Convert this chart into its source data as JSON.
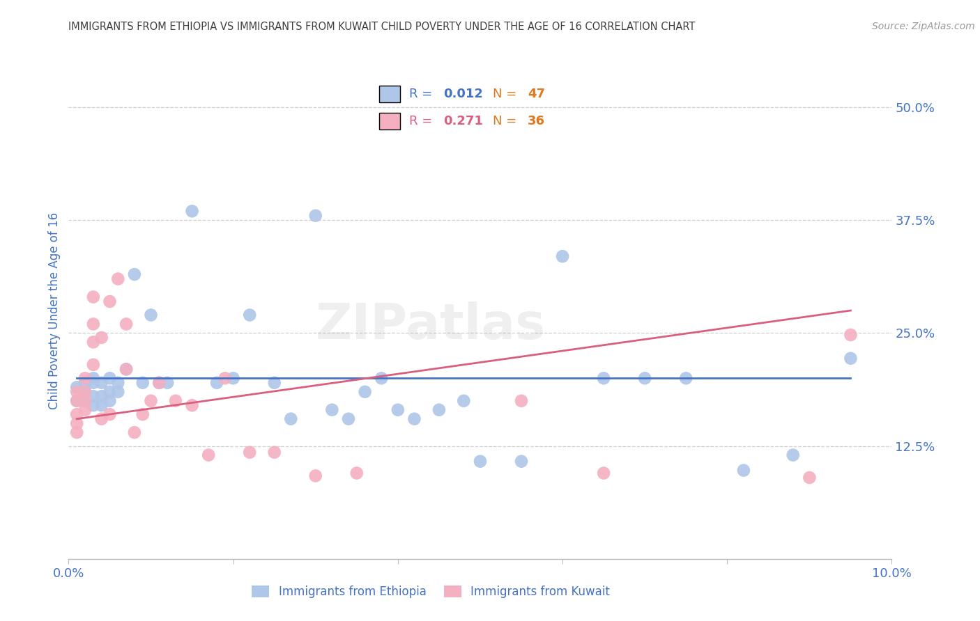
{
  "title": "IMMIGRANTS FROM ETHIOPIA VS IMMIGRANTS FROM KUWAIT CHILD POVERTY UNDER THE AGE OF 16 CORRELATION CHART",
  "source": "Source: ZipAtlas.com",
  "ylabel": "Child Poverty Under the Age of 16",
  "xlim": [
    0.0,
    0.1
  ],
  "ylim": [
    0.0,
    0.55
  ],
  "yticks": [
    0.125,
    0.25,
    0.375,
    0.5
  ],
  "ytick_labels": [
    "12.5%",
    "25.0%",
    "37.5%",
    "50.0%"
  ],
  "xticks": [
    0.0,
    0.02,
    0.04,
    0.06,
    0.08,
    0.1
  ],
  "xtick_labels": [
    "0.0%",
    "",
    "",
    "",
    "",
    "10.0%"
  ],
  "legend_bottom_labels": [
    "Immigrants from Ethiopia",
    "Immigrants from Kuwait"
  ],
  "ethiopia_R": "0.012",
  "ethiopia_N": "47",
  "kuwait_R": "0.271",
  "kuwait_N": "36",
  "ethiopia_color": "#aec6e8",
  "kuwait_color": "#f4afc0",
  "ethiopia_line_color": "#4472c4",
  "kuwait_line_color": "#d95f7f",
  "R_color": "#4472c4",
  "N_color": "#e07820",
  "background_color": "#ffffff",
  "grid_color": "#d0d0d0",
  "title_color": "#404040",
  "tick_color": "#4472c4",
  "watermark": "ZIPatlas",
  "ethiopia_scatter_x": [
    0.001,
    0.001,
    0.002,
    0.002,
    0.002,
    0.003,
    0.003,
    0.003,
    0.003,
    0.004,
    0.004,
    0.004,
    0.005,
    0.005,
    0.005,
    0.006,
    0.006,
    0.007,
    0.008,
    0.009,
    0.01,
    0.011,
    0.012,
    0.015,
    0.018,
    0.02,
    0.022,
    0.025,
    0.027,
    0.03,
    0.032,
    0.034,
    0.036,
    0.038,
    0.04,
    0.042,
    0.045,
    0.048,
    0.05,
    0.055,
    0.06,
    0.065,
    0.07,
    0.075,
    0.082,
    0.088,
    0.095
  ],
  "ethiopia_scatter_y": [
    0.19,
    0.175,
    0.185,
    0.175,
    0.195,
    0.17,
    0.18,
    0.195,
    0.2,
    0.17,
    0.18,
    0.195,
    0.175,
    0.185,
    0.2,
    0.185,
    0.195,
    0.21,
    0.315,
    0.195,
    0.27,
    0.195,
    0.195,
    0.385,
    0.195,
    0.2,
    0.27,
    0.195,
    0.155,
    0.38,
    0.165,
    0.155,
    0.185,
    0.2,
    0.165,
    0.155,
    0.165,
    0.175,
    0.108,
    0.108,
    0.335,
    0.2,
    0.2,
    0.2,
    0.098,
    0.115,
    0.222
  ],
  "kuwait_scatter_x": [
    0.001,
    0.001,
    0.001,
    0.001,
    0.001,
    0.002,
    0.002,
    0.002,
    0.002,
    0.003,
    0.003,
    0.003,
    0.003,
    0.004,
    0.004,
    0.005,
    0.005,
    0.006,
    0.007,
    0.007,
    0.008,
    0.009,
    0.01,
    0.011,
    0.013,
    0.015,
    0.017,
    0.019,
    0.022,
    0.025,
    0.03,
    0.035,
    0.055,
    0.065,
    0.09,
    0.095
  ],
  "kuwait_scatter_y": [
    0.185,
    0.175,
    0.16,
    0.15,
    0.14,
    0.2,
    0.185,
    0.175,
    0.165,
    0.215,
    0.24,
    0.26,
    0.29,
    0.155,
    0.245,
    0.16,
    0.285,
    0.31,
    0.21,
    0.26,
    0.14,
    0.16,
    0.175,
    0.195,
    0.175,
    0.17,
    0.115,
    0.2,
    0.118,
    0.118,
    0.092,
    0.095,
    0.175,
    0.095,
    0.09,
    0.248
  ],
  "eth_trend_x": [
    0.001,
    0.095
  ],
  "eth_trend_y": [
    0.2,
    0.2
  ],
  "kuw_trend_x": [
    0.001,
    0.095
  ],
  "kuw_trend_y": [
    0.155,
    0.275
  ]
}
